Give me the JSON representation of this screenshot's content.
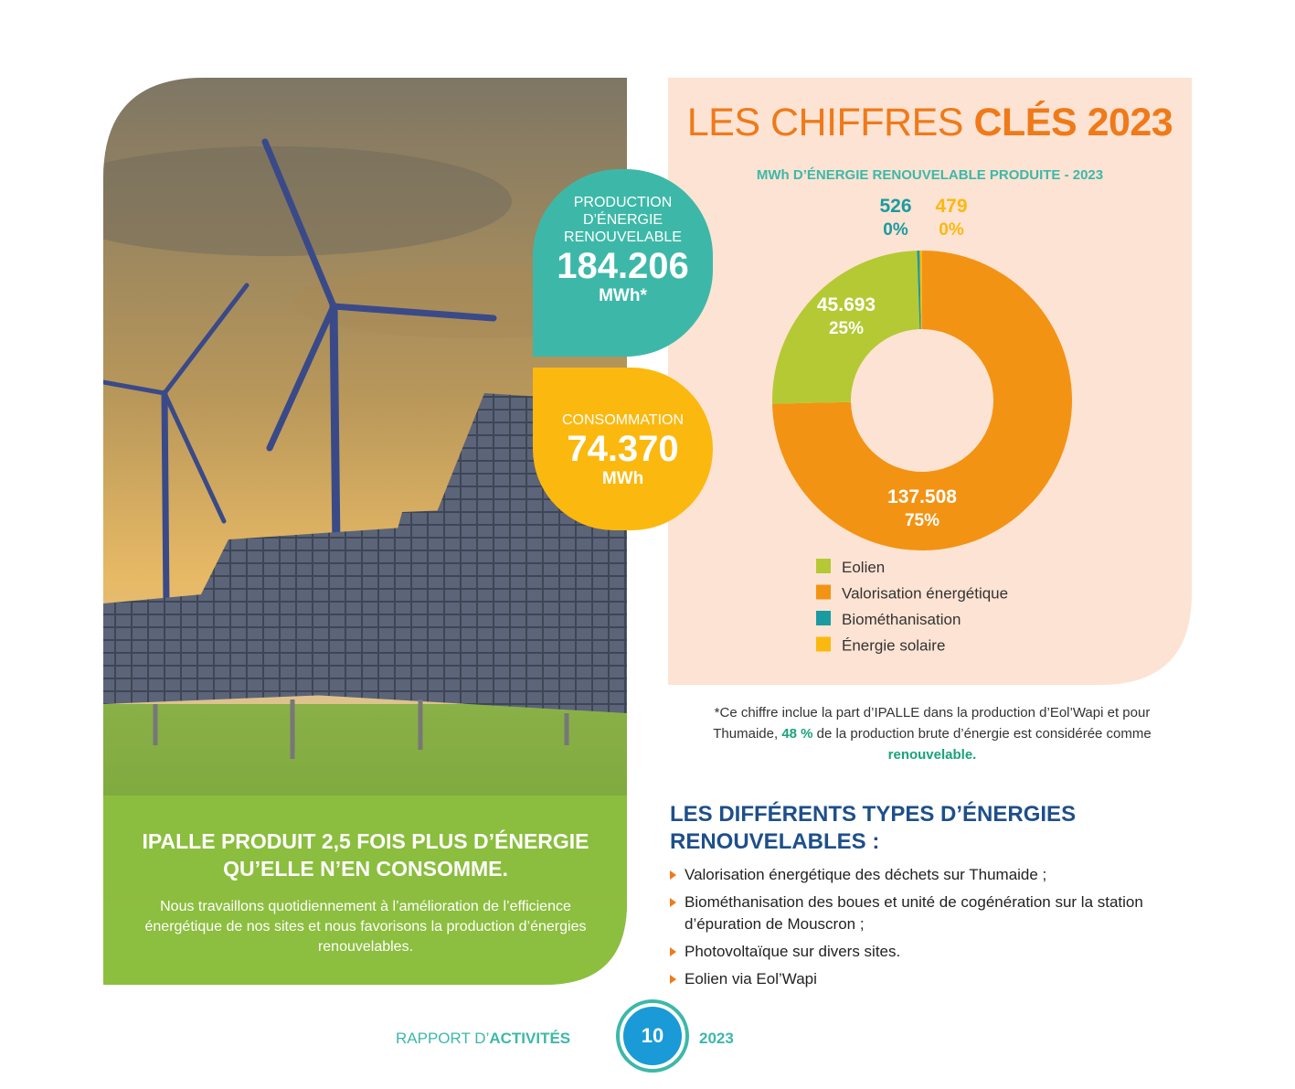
{
  "header": {
    "title_light": "LES CHIFFRES",
    "title_bold": "CLÉS 2023"
  },
  "callouts": [
    {
      "label": "PRODUCTION D’ÉNERGIE RENOUVELABLE",
      "value": "184.206",
      "unit": "MWh*"
    },
    {
      "label": "CONSOMMATION",
      "value": "74.370",
      "unit": "MWh"
    }
  ],
  "chart_data": {
    "type": "donut",
    "title": "MWh D’ÉNERGIE RENOUVELABLE PRODUITE - 2023",
    "categories": [
      "Eolien",
      "Valorisation énergétique",
      "Biométhanisation",
      "Énergie solaire"
    ],
    "values": [
      45693,
      137508,
      526,
      479
    ],
    "value_labels": [
      "45.693",
      "137.508",
      "526",
      "479"
    ],
    "percent_labels": [
      "25%",
      "75%",
      "0%",
      "0%"
    ],
    "colors": [
      "#b5c934",
      "#f39313",
      "#1a9ba1",
      "#fbb80f"
    ],
    "legend": "bottom-left"
  },
  "note": [
    "*Ce chiffre inclue la part d’IPALLE dans la production d’Eol’Wapi et pour Thumaide, ",
    "48 %",
    " de la production brute d’énergie est considérée comme ",
    "renouvelable."
  ],
  "photo_caption": {
    "title": "IPALLE PRODUIT 2,5 FOIS PLUS D’ÉNERGIE QU’ELLE N’EN CONSOMME.",
    "text": "Nous travaillons quotidiennement à l’amélioration de l’efficience énergétique de nos sites et nous favorisons la production d’énergies renouvelables."
  },
  "types": {
    "title": "LES DIFFÉRENTS TYPES D’ÉNERGIES RENOUVELABLES :",
    "items": [
      "Valorisation énergétique des déchets sur Thumaide ;",
      "Biométhanisation des boues et unité de cogénération sur la station d’épuration de Mouscron ;",
      "Photovoltaïque sur divers sites.",
      "Eolien via Eol’Wapi"
    ]
  },
  "footer": {
    "label_light": "RAPPORT D’",
    "label_bold": "ACTIVITÉS",
    "page": "10",
    "year": "2023"
  }
}
